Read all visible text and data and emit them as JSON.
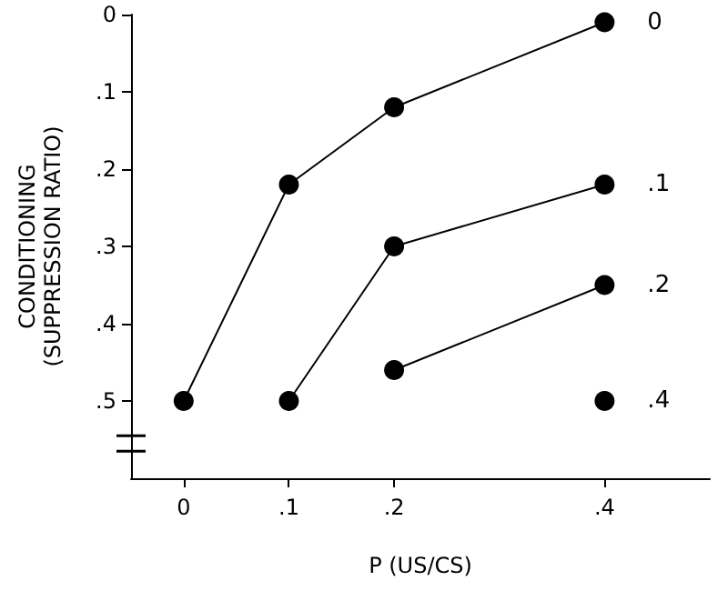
{
  "chart_data": {
    "type": "line",
    "xlabel": "P (US/CS)",
    "ylabel": "CONDITIONING\n(SUPPRESSION RATIO)",
    "series": [
      {
        "name": "0",
        "color": "#000000",
        "x": [
          0,
          0.1,
          0.2,
          0.4
        ],
        "values": [
          0.5,
          0.22,
          0.12,
          0.01
        ]
      },
      {
        "name": ".1",
        "color": "#000000",
        "x": [
          0.1,
          0.2,
          0.4
        ],
        "values": [
          0.5,
          0.3,
          0.22
        ]
      },
      {
        "name": ".2",
        "color": "#000000",
        "x": [
          0.2,
          0.4
        ],
        "values": [
          0.46,
          0.35
        ]
      },
      {
        "name": ".4",
        "color": "#000000",
        "x": [
          0.4
        ],
        "values": [
          0.5
        ]
      }
    ],
    "xlim": [
      -0.05,
      0.5
    ],
    "ylim": [
      0.6,
      0
    ],
    "xticks": [
      0,
      {
        "value": 0.1,
        "label": ".1"
      },
      {
        "value": 0.2,
        "label": ".2"
      },
      {
        "value": 0.4,
        "label": ".4"
      }
    ],
    "yticks": [
      0,
      {
        "value": 0.1,
        "label": ".1"
      },
      {
        "value": 0.2,
        "label": ".2"
      },
      {
        "value": 0.3,
        "label": ".3"
      },
      {
        "value": 0.4,
        "label": ".4"
      },
      {
        "value": 0.5,
        "label": ".5"
      }
    ],
    "grid": false,
    "legend": false,
    "marker": "circle",
    "line_style": "solid"
  }
}
